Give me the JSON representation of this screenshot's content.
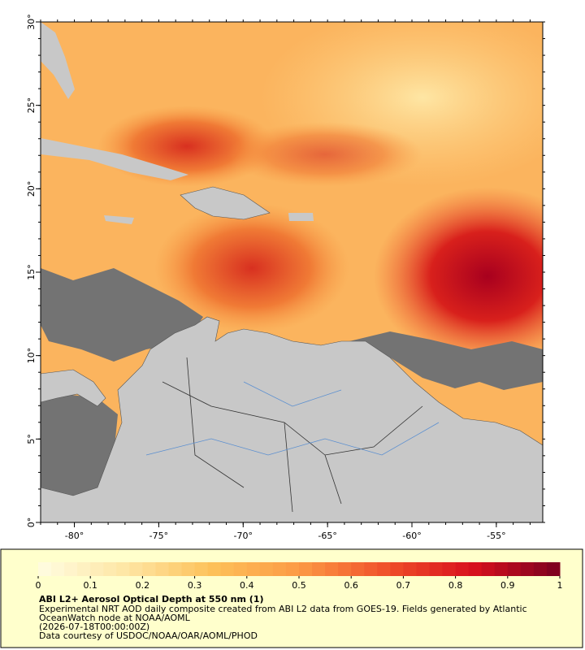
{
  "chart_data": {
    "type": "map",
    "xlim": [
      -82,
      -52.25
    ],
    "ylim": [
      0,
      30
    ],
    "xticks": [
      {
        "value": -80,
        "label": "-80°"
      },
      {
        "value": -75,
        "label": "-75°"
      },
      {
        "value": -70,
        "label": "-70°"
      },
      {
        "value": -65,
        "label": "-65°"
      },
      {
        "value": -60,
        "label": "-60°"
      },
      {
        "value": -55,
        "label": "-55°"
      }
    ],
    "yticks": [
      {
        "value": 0,
        "label": "0°"
      },
      {
        "value": 5,
        "label": "5°"
      },
      {
        "value": 10,
        "label": "10°"
      },
      {
        "value": 15,
        "label": "15°"
      },
      {
        "value": 20,
        "label": "20°"
      },
      {
        "value": 25,
        "label": "25°"
      },
      {
        "value": 30,
        "label": "30°"
      }
    ],
    "colorbar": {
      "lim": [
        0,
        1
      ],
      "ticks": [
        0,
        0.1,
        0.2,
        0.3,
        0.4,
        0.5,
        0.6,
        0.7,
        0.8,
        0.9,
        1
      ],
      "colors": [
        "#fffde2",
        "#fee6a4",
        "#fdc15a",
        "#fc9a45",
        "#f0502a",
        "#d8101c",
        "#7a0020"
      ]
    },
    "title": "ABI L2+ Aerosol Optical Depth at 550 nm (1)",
    "notes": [
      "Experimental NRT AOD daily composite created from ABI L2 data from GOES-19. Fields generated by Atlantic",
      "OceanWatch node at NOAA/AOML",
      "(2026-07-18T00:00:00Z)",
      "Data courtesy of USDOC/NOAA/OAR/AOML/PHOD"
    ]
  }
}
